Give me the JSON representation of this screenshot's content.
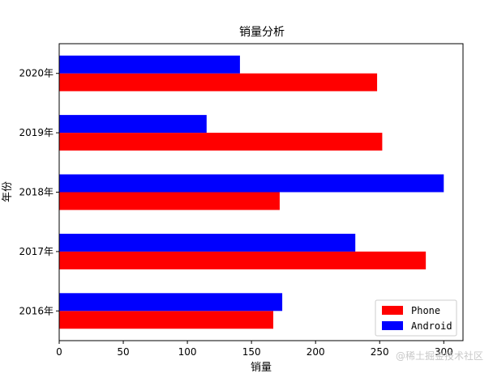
{
  "chart_data": {
    "type": "bar",
    "orientation": "horizontal",
    "title": "销量分析",
    "xlabel": "销量",
    "ylabel": "年份",
    "categories": [
      "2016年",
      "2017年",
      "2018年",
      "2019年",
      "2020年"
    ],
    "series": [
      {
        "name": "Phone",
        "color": "#ff0000",
        "values": [
          167,
          286,
          172,
          252,
          248
        ]
      },
      {
        "name": "Android",
        "color": "#0000ff",
        "values": [
          174,
          231,
          300,
          115,
          141
        ]
      }
    ],
    "xlim": [
      0,
      315
    ],
    "xticks": [
      0,
      50,
      100,
      150,
      200,
      250,
      300
    ],
    "legend_position": "lower-right",
    "grid": false
  },
  "watermark": "@稀土掘金技术社区"
}
